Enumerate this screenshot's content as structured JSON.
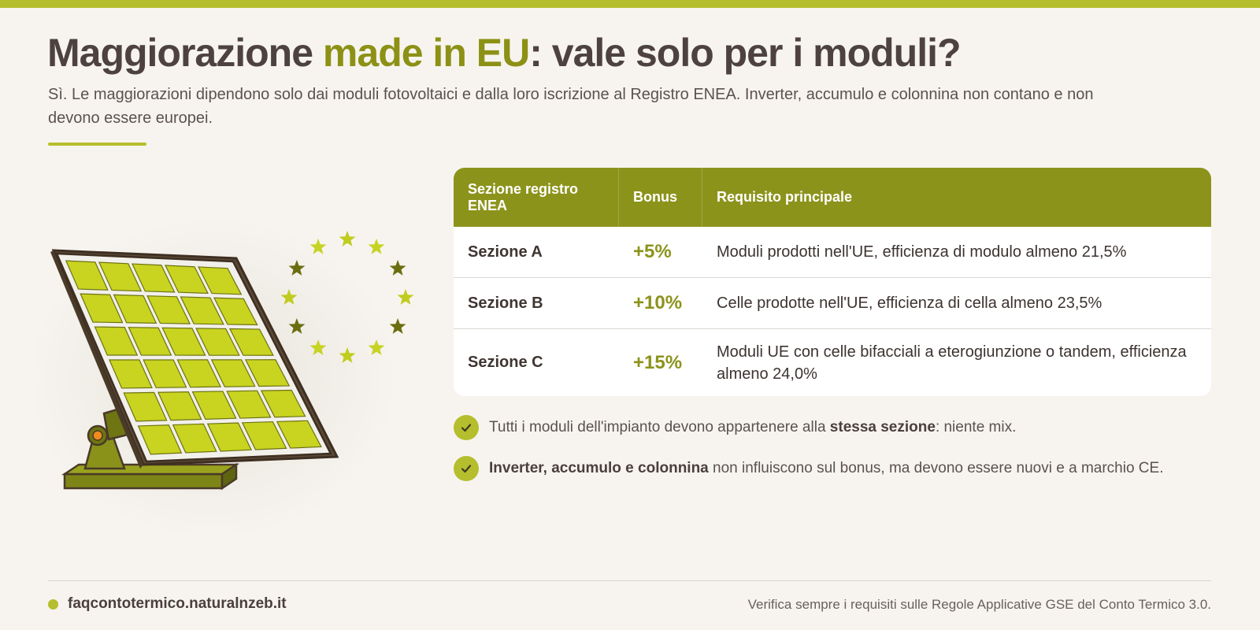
{
  "header": {
    "title_part1": "Maggiorazione ",
    "title_accent": "made in EU",
    "title_part2": ": vale solo per i moduli?",
    "subtitle": "Sì. Le maggiorazioni dipendono solo dai moduli fotovoltaici e dalla loro iscrizione al Registro ENEA. Inverter, accumulo e colonnina non contano e non devono essere europei."
  },
  "table": {
    "headers": [
      "Sezione registro ENEA",
      "Bonus",
      "Requisito principale"
    ],
    "rows": [
      {
        "section": "Sezione A",
        "bonus": "+5%",
        "requirement": "Moduli prodotti nell'UE, efficienza di modulo almeno 21,5%"
      },
      {
        "section": "Sezione B",
        "bonus": "+10%",
        "requirement": "Celle prodotte nell'UE, efficienza di cella almeno 23,5%"
      },
      {
        "section": "Sezione C",
        "bonus": "+15%",
        "requirement": "Moduli UE con celle bifacciali a eterogiunzione o tandem, efficienza almeno 24,0%"
      }
    ]
  },
  "notes": [
    {
      "pre": "Tutti i moduli dell'impianto devono appartenere alla ",
      "bold": "stessa sezione",
      "post": ": niente mix."
    },
    {
      "pre": "",
      "bold": "Inverter, accumulo e colonnina",
      "post": " non influiscono sul bonus, ma devono essere nuovi e a marchio CE."
    }
  ],
  "footer": {
    "site": "faqcontotermico.naturalnzeb.it",
    "disclaimer": "Verifica sempre i requisiti sulle Regole Applicative GSE del Conto Termico 3.0."
  },
  "illustration": {
    "icon": "solar-panel-eu-stars-icon"
  },
  "colors": {
    "accent": "#b5be2c",
    "olive": "#8c931b",
    "text": "#4d4240",
    "background": "#f7f4ef"
  }
}
